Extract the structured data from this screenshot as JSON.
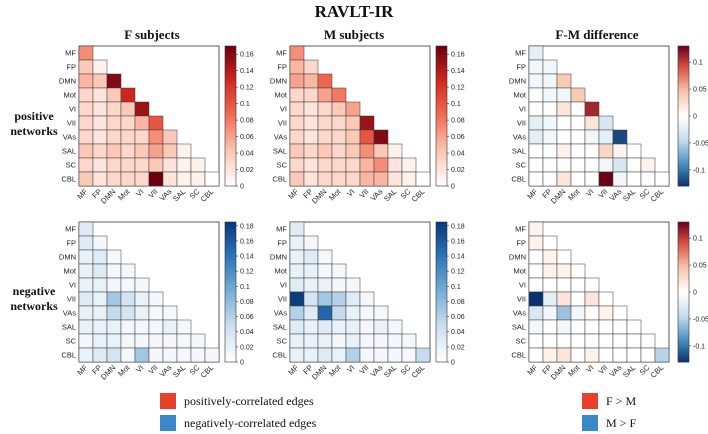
{
  "figure": {
    "title": "RAVLT-IR",
    "column_titles": [
      "F subjects",
      "M subjects",
      "F-M difference"
    ],
    "row_labels": [
      [
        "positive",
        "networks"
      ],
      [
        "negative",
        "networks"
      ]
    ]
  },
  "legend": {
    "left": [
      {
        "label": "positively-correlated edges",
        "color": "#e8402a"
      },
      {
        "label": "negatively-correlated edges",
        "color": "#3a88c8"
      }
    ],
    "right": [
      {
        "label": "F > M",
        "color": "#e8402a"
      },
      {
        "label": "M > F",
        "color": "#3a88c8"
      }
    ]
  },
  "chart_data": [
    {
      "type": "heatmap",
      "id": "pos-F",
      "colormap": "reds",
      "ylim": [
        0,
        0.17
      ],
      "ticks": [
        "0",
        "0.02",
        "0.04",
        "0.06",
        "0.08",
        "0.1",
        "0.12",
        "0.14",
        "0.16"
      ],
      "tick_values": [
        0,
        0.02,
        0.04,
        0.06,
        0.08,
        0.1,
        0.12,
        0.14,
        0.16
      ],
      "categories": [
        "MF",
        "FP",
        "DMN",
        "Mot",
        "VI",
        "VII",
        "VAs",
        "SAL",
        "SC",
        "CBL"
      ],
      "values": [
        [
          0.07
        ],
        [
          0.04,
          0.01
        ],
        [
          0.05,
          0.04,
          0.16
        ],
        [
          0.03,
          0.02,
          0.04,
          0.13
        ],
        [
          0.03,
          0.02,
          0.03,
          0.04,
          0.15
        ],
        [
          0.03,
          0.02,
          0.03,
          0.03,
          0.05,
          0.1
        ],
        [
          0.03,
          0.02,
          0.03,
          0.03,
          0.03,
          0.07,
          0.04
        ],
        [
          0.04,
          0.03,
          0.04,
          0.03,
          0.04,
          0.06,
          0.04,
          0.01
        ],
        [
          0.03,
          0.02,
          0.03,
          0.03,
          0.03,
          0.04,
          0.02,
          0.01,
          0.01
        ],
        [
          0.04,
          0.02,
          0.03,
          0.03,
          0.03,
          0.17,
          0.02,
          0.01,
          0.01,
          0.0
        ]
      ]
    },
    {
      "type": "heatmap",
      "id": "pos-M",
      "colormap": "reds",
      "ylim": [
        0,
        0.17
      ],
      "ticks": [
        "0",
        "0.02",
        "0.04",
        "0.06",
        "0.08",
        "0.1",
        "0.12",
        "0.14",
        "0.16"
      ],
      "tick_values": [
        0,
        0.02,
        0.04,
        0.06,
        0.08,
        0.1,
        0.12,
        0.14,
        0.16
      ],
      "categories": [
        "MF",
        "FP",
        "DMN",
        "Mot",
        "VI",
        "VII",
        "VAs",
        "SAL",
        "SC",
        "CBL"
      ],
      "values": [
        [
          0.07
        ],
        [
          0.05,
          0.03
        ],
        [
          0.06,
          0.05,
          0.09
        ],
        [
          0.03,
          0.03,
          0.06,
          0.08
        ],
        [
          0.03,
          0.02,
          0.03,
          0.04,
          0.06
        ],
        [
          0.03,
          0.02,
          0.03,
          0.03,
          0.04,
          0.15
        ],
        [
          0.03,
          0.02,
          0.03,
          0.03,
          0.04,
          0.1,
          0.16
        ],
        [
          0.04,
          0.03,
          0.04,
          0.03,
          0.04,
          0.07,
          0.04,
          0.01
        ],
        [
          0.03,
          0.02,
          0.03,
          0.03,
          0.03,
          0.05,
          0.07,
          0.02,
          0.01
        ],
        [
          0.04,
          0.02,
          0.03,
          0.03,
          0.03,
          0.05,
          0.05,
          0.02,
          0.01,
          0.0
        ]
      ]
    },
    {
      "type": "heatmap",
      "id": "pos-diff",
      "colormap": "diverging",
      "ylim": [
        -0.13,
        0.13
      ],
      "ticks": [
        "0.1",
        "0.05",
        "0",
        "-0.05",
        "-0.1"
      ],
      "tick_values": [
        0.1,
        0.05,
        0,
        -0.05,
        -0.1
      ],
      "categories": [
        "MF",
        "FP",
        "DMN",
        "Mot",
        "VI",
        "VII",
        "VAs",
        "SAL",
        "SC",
        "CBL"
      ],
      "values": [
        [
          -0.02
        ],
        [
          -0.01,
          -0.01
        ],
        [
          -0.01,
          -0.01,
          0.04
        ],
        [
          0.0,
          -0.01,
          -0.01,
          0.04
        ],
        [
          0.0,
          0.0,
          0.02,
          0.0,
          0.11
        ],
        [
          -0.02,
          -0.01,
          0.0,
          0.0,
          0.02,
          -0.03
        ],
        [
          -0.02,
          -0.01,
          0.0,
          0.0,
          -0.01,
          -0.02,
          -0.12
        ],
        [
          0.0,
          0.0,
          0.01,
          0.0,
          0.0,
          0.03,
          0.01,
          0.0
        ],
        [
          0.0,
          0.0,
          0.0,
          0.0,
          0.0,
          -0.01,
          -0.03,
          0.0,
          0.01
        ],
        [
          0.0,
          0.0,
          0.02,
          0.0,
          0.0,
          0.13,
          -0.01,
          0.0,
          0.0,
          0.0
        ]
      ]
    },
    {
      "type": "heatmap",
      "id": "neg-F",
      "colormap": "blues",
      "ylim": [
        0,
        0.185
      ],
      "ticks": [
        "0",
        "0.02",
        "0.04",
        "0.06",
        "0.08",
        "0.1",
        "0.12",
        "0.14",
        "0.16",
        "0.18"
      ],
      "tick_values": [
        0,
        0.02,
        0.04,
        0.06,
        0.08,
        0.1,
        0.12,
        0.14,
        0.16,
        0.18
      ],
      "categories": [
        "MF",
        "FP",
        "DMN",
        "Mot",
        "VI",
        "VII",
        "VAs",
        "SAL",
        "SC",
        "CBL"
      ],
      "values": [
        [
          0.03
        ],
        [
          0.03,
          0.01
        ],
        [
          0.02,
          0.03,
          0.01
        ],
        [
          0.02,
          0.03,
          0.01,
          0.01
        ],
        [
          0.02,
          0.02,
          0.01,
          0.01,
          0.01
        ],
        [
          0.03,
          0.02,
          0.07,
          0.04,
          0.02,
          0.01
        ],
        [
          0.02,
          0.02,
          0.05,
          0.04,
          0.02,
          0.01,
          0.01
        ],
        [
          0.02,
          0.02,
          0.02,
          0.01,
          0.01,
          0.01,
          0.02,
          0.01
        ],
        [
          0.01,
          0.02,
          0.02,
          0.01,
          0.01,
          0.01,
          0.01,
          0.01,
          0.01
        ],
        [
          0.02,
          0.03,
          0.04,
          0.01,
          0.07,
          0.01,
          0.01,
          0.01,
          0.01,
          0.01
        ]
      ]
    },
    {
      "type": "heatmap",
      "id": "neg-M",
      "colormap": "blues",
      "ylim": [
        0,
        0.185
      ],
      "ticks": [
        "0",
        "0.02",
        "0.04",
        "0.06",
        "0.08",
        "0.1",
        "0.12",
        "0.14",
        "0.16",
        "0.18"
      ],
      "tick_values": [
        0,
        0.02,
        0.04,
        0.06,
        0.08,
        0.1,
        0.12,
        0.14,
        0.16,
        0.18
      ],
      "categories": [
        "MF",
        "FP",
        "DMN",
        "Mot",
        "VI",
        "VII",
        "VAs",
        "SAL",
        "SC",
        "CBL"
      ],
      "values": [
        [
          0.03
        ],
        [
          0.02,
          0.01
        ],
        [
          0.02,
          0.03,
          0.01
        ],
        [
          0.02,
          0.02,
          0.01,
          0.01
        ],
        [
          0.03,
          0.02,
          0.02,
          0.01,
          0.01
        ],
        [
          0.18,
          0.04,
          0.07,
          0.06,
          0.03,
          0.01
        ],
        [
          0.06,
          0.03,
          0.15,
          0.05,
          0.02,
          0.01,
          0.01
        ],
        [
          0.03,
          0.02,
          0.03,
          0.02,
          0.02,
          0.01,
          0.02,
          0.01
        ],
        [
          0.02,
          0.02,
          0.02,
          0.01,
          0.02,
          0.01,
          0.01,
          0.01,
          0.01
        ],
        [
          0.02,
          0.02,
          0.03,
          0.02,
          0.06,
          0.01,
          0.01,
          0.01,
          0.01,
          0.05
        ]
      ]
    },
    {
      "type": "heatmap",
      "id": "neg-diff",
      "colormap": "diverging",
      "ylim": [
        -0.13,
        0.13
      ],
      "ticks": [
        "0.1",
        "0.05",
        "0",
        "-0.05",
        "-0.1"
      ],
      "tick_values": [
        0.1,
        0.05,
        0,
        -0.05,
        -0.1
      ],
      "categories": [
        "MF",
        "FP",
        "DMN",
        "Mot",
        "VI",
        "VII",
        "VAs",
        "SAL",
        "SC",
        "CBL"
      ],
      "values": [
        [
          0.01
        ],
        [
          0.01,
          0.0
        ],
        [
          0.0,
          0.01,
          0.0
        ],
        [
          0.0,
          0.01,
          0.01,
          0.0
        ],
        [
          0.0,
          0.0,
          0.0,
          0.0,
          0.0
        ],
        [
          -0.13,
          -0.02,
          0.02,
          0.0,
          0.02,
          0.0
        ],
        [
          -0.03,
          -0.01,
          -0.06,
          -0.01,
          0.0,
          0.01,
          0.0
        ],
        [
          -0.01,
          0.0,
          -0.01,
          0.0,
          0.0,
          0.0,
          0.0,
          0.0
        ],
        [
          0.0,
          0.0,
          0.0,
          0.0,
          0.0,
          0.0,
          0.0,
          0.0,
          0.0
        ],
        [
          0.0,
          0.01,
          0.02,
          0.0,
          0.01,
          0.0,
          0.0,
          0.0,
          0.0,
          -0.05
        ]
      ]
    }
  ]
}
